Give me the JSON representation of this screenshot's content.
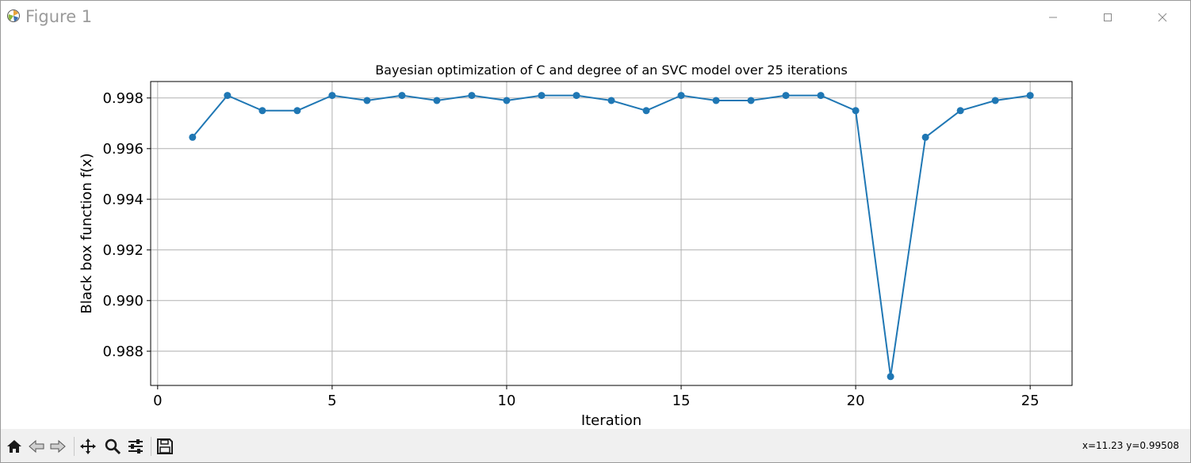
{
  "window": {
    "title": "Figure 1",
    "controls": [
      "minimize",
      "maximize",
      "close"
    ]
  },
  "toolbar": {
    "buttons": [
      {
        "name": "home",
        "icon": "home-icon"
      },
      {
        "name": "back",
        "icon": "back-arrow-icon"
      },
      {
        "name": "forward",
        "icon": "forward-arrow-icon"
      },
      {
        "name": "pan",
        "icon": "move-icon"
      },
      {
        "name": "zoom",
        "icon": "magnifier-icon"
      },
      {
        "name": "configure-subplots",
        "icon": "sliders-icon"
      },
      {
        "name": "save",
        "icon": "floppy-disk-icon"
      }
    ],
    "coords": "x=11.23 y=0.99508"
  },
  "chart_data": {
    "type": "line",
    "title": "Bayesian optimization of C and degree of an SVC model over 25 iterations",
    "xlabel": "Iteration",
    "ylabel": "Black box function f(x)",
    "xlim": [
      -0.2,
      26.2
    ],
    "ylim": [
      0.98665,
      0.99865
    ],
    "xticks": [
      0,
      5,
      10,
      15,
      20,
      25
    ],
    "yticks": [
      0.988,
      0.99,
      0.992,
      0.994,
      0.996,
      0.998
    ],
    "ytick_labels": [
      "0.988",
      "0.990",
      "0.992",
      "0.994",
      "0.996",
      "0.998"
    ],
    "grid": true,
    "series": [
      {
        "color": "#1f77b4",
        "marker": "circle",
        "x": [
          1,
          2,
          3,
          4,
          5,
          6,
          7,
          8,
          9,
          10,
          11,
          12,
          13,
          14,
          15,
          16,
          17,
          18,
          19,
          20,
          21,
          22,
          23,
          24,
          25
        ],
        "y": [
          0.99645,
          0.9981,
          0.9975,
          0.9975,
          0.9981,
          0.9979,
          0.9981,
          0.9979,
          0.9981,
          0.9979,
          0.9981,
          0.9981,
          0.9979,
          0.9975,
          0.9981,
          0.9979,
          0.9979,
          0.9981,
          0.9981,
          0.9975,
          0.987,
          0.99645,
          0.9975,
          0.9979,
          0.9981
        ]
      }
    ]
  }
}
